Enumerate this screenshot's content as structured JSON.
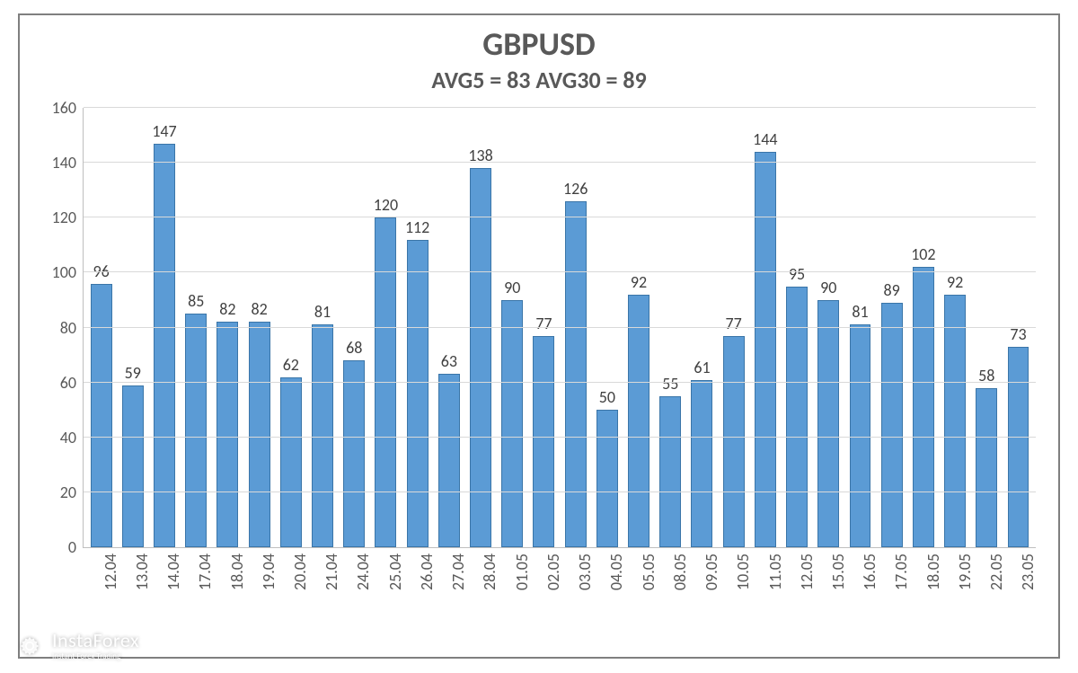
{
  "title": "GBPUSD",
  "title_fontsize": 36,
  "subtitle": "AVG5 = 83 AVG30 = 89",
  "subtitle_fontsize": 26,
  "chart": {
    "type": "bar",
    "categories": [
      "12.04",
      "13.04",
      "14.04",
      "17.04",
      "18.04",
      "19.04",
      "20.04",
      "21.04",
      "24.04",
      "25.04",
      "26.04",
      "27.04",
      "28.04",
      "01.05",
      "02.05",
      "03.05",
      "04.05",
      "05.05",
      "08.05",
      "09.05",
      "10.05",
      "11.05",
      "12.05",
      "15.05",
      "16.05",
      "17.05",
      "18.05",
      "19.05",
      "22.05",
      "23.05"
    ],
    "values": [
      96,
      59,
      147,
      85,
      82,
      82,
      62,
      81,
      68,
      120,
      112,
      63,
      138,
      90,
      77,
      126,
      50,
      92,
      55,
      61,
      77,
      144,
      95,
      90,
      81,
      89,
      102,
      92,
      58,
      73
    ],
    "bar_fill": "#5b9bd5",
    "bar_border": "#3a75a8",
    "bar_width_pct": 68,
    "ylim": [
      0,
      160
    ],
    "ytick_step": 20,
    "yticks": [
      0,
      20,
      40,
      60,
      80,
      100,
      120,
      140,
      160
    ],
    "grid_color": "#d9d9d9",
    "axis_color": "#bfbfbf",
    "background_color": "#ffffff",
    "tick_fontsize": 18,
    "value_label_fontsize": 18,
    "title_color": "#595959",
    "label_color": "#595959",
    "xlabel_rotation_deg": -90
  },
  "watermark": {
    "brand": "InstaForex",
    "tagline": "Instant Forex Trading",
    "color": "#ffffff"
  }
}
